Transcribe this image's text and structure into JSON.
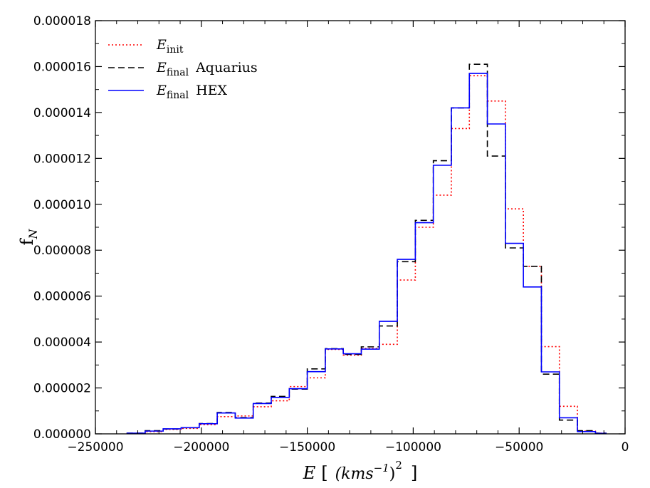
{
  "chart_data": {
    "type": "step-histogram",
    "title": "",
    "xlabel": {
      "var": "E",
      "open": "[",
      "inner": "(kms",
      "sup1": "−1",
      "close_paren": ")",
      "sup2": "2",
      "close": "]"
    },
    "ylabel": {
      "base": "f",
      "sub": "N"
    },
    "xlim": [
      -250000,
      0
    ],
    "ylim": [
      0,
      1.8e-05
    ],
    "x_ticks": [
      -250000,
      -200000,
      -150000,
      -100000,
      -50000,
      0
    ],
    "x_tick_labels": [
      "−250000",
      "−200000",
      "−150000",
      "−100000",
      "−50000",
      "0"
    ],
    "y_ticks": [
      0,
      2e-06,
      4e-06,
      6e-06,
      8e-06,
      1e-05,
      1.2e-05,
      1.4e-05,
      1.6e-05,
      1.8e-05
    ],
    "y_tick_labels": [
      "0.000000",
      "0.000002",
      "0.000004",
      "0.000006",
      "0.000008",
      "0.000010",
      "0.000012",
      "0.000014",
      "0.000016",
      "0.000018"
    ],
    "bin_edges": [
      -235000,
      -226500,
      -218000,
      -209500,
      -201000,
      -192500,
      -184000,
      -175500,
      -167000,
      -158500,
      -150000,
      -141500,
      -133000,
      -124500,
      -116000,
      -107500,
      -99000,
      -90500,
      -82000,
      -73500,
      -65000,
      -56500,
      -48000,
      -39500,
      -31000,
      -22500,
      -14000,
      -9000
    ],
    "legend_position": "top-left",
    "series": [
      {
        "name": "E_init",
        "label_base": "E",
        "label_sub": "init",
        "label_suffix": "",
        "color": "#ff0000",
        "style": "dotted",
        "values": [
          2e-08,
          1e-07,
          1.9e-07,
          2.4e-07,
          4e-07,
          7.5e-07,
          7.8e-07,
          1.18e-06,
          1.44e-06,
          2.06e-06,
          2.44e-06,
          3.68e-06,
          3.43e-06,
          3.72e-06,
          3.9e-06,
          6.7e-06,
          9e-06,
          1.04e-05,
          1.33e-05,
          1.56e-05,
          1.45e-05,
          9.8e-06,
          7.3e-06,
          3.8e-06,
          1.2e-06,
          1.2e-07,
          3e-08
        ]
      },
      {
        "name": "E_final Aquarius",
        "label_base": "E",
        "label_sub": "final",
        "label_suffix": "Aquarius",
        "color": "#000000",
        "style": "dashed",
        "values": [
          3e-08,
          1.4e-07,
          2.1e-07,
          2.7e-07,
          4.5e-07,
          9.3e-07,
          7.1e-07,
          1.34e-06,
          1.63e-06,
          1.95e-06,
          2.83e-06,
          3.71e-06,
          3.46e-06,
          3.79e-06,
          4.7e-06,
          7.5e-06,
          9.3e-06,
          1.19e-05,
          1.42e-05,
          1.61e-05,
          1.21e-05,
          8.1e-06,
          7.3e-06,
          2.6e-06,
          6e-07,
          1.4e-07,
          3e-08
        ]
      },
      {
        "name": "E_final HEX",
        "label_base": "E",
        "label_sub": "final",
        "label_suffix": "HEX",
        "color": "#0000ff",
        "style": "solid",
        "values": [
          3e-08,
          1.2e-07,
          2.2e-07,
          2.7e-07,
          4.4e-07,
          9.1e-07,
          6.9e-07,
          1.32e-06,
          1.59e-06,
          1.97e-06,
          2.71e-06,
          3.7e-06,
          3.49e-06,
          3.69e-06,
          4.9e-06,
          7.6e-06,
          9.2e-06,
          1.17e-05,
          1.42e-05,
          1.57e-05,
          1.35e-05,
          8.3e-06,
          6.4e-06,
          2.7e-06,
          7e-07,
          1e-07,
          2e-08
        ]
      }
    ]
  }
}
